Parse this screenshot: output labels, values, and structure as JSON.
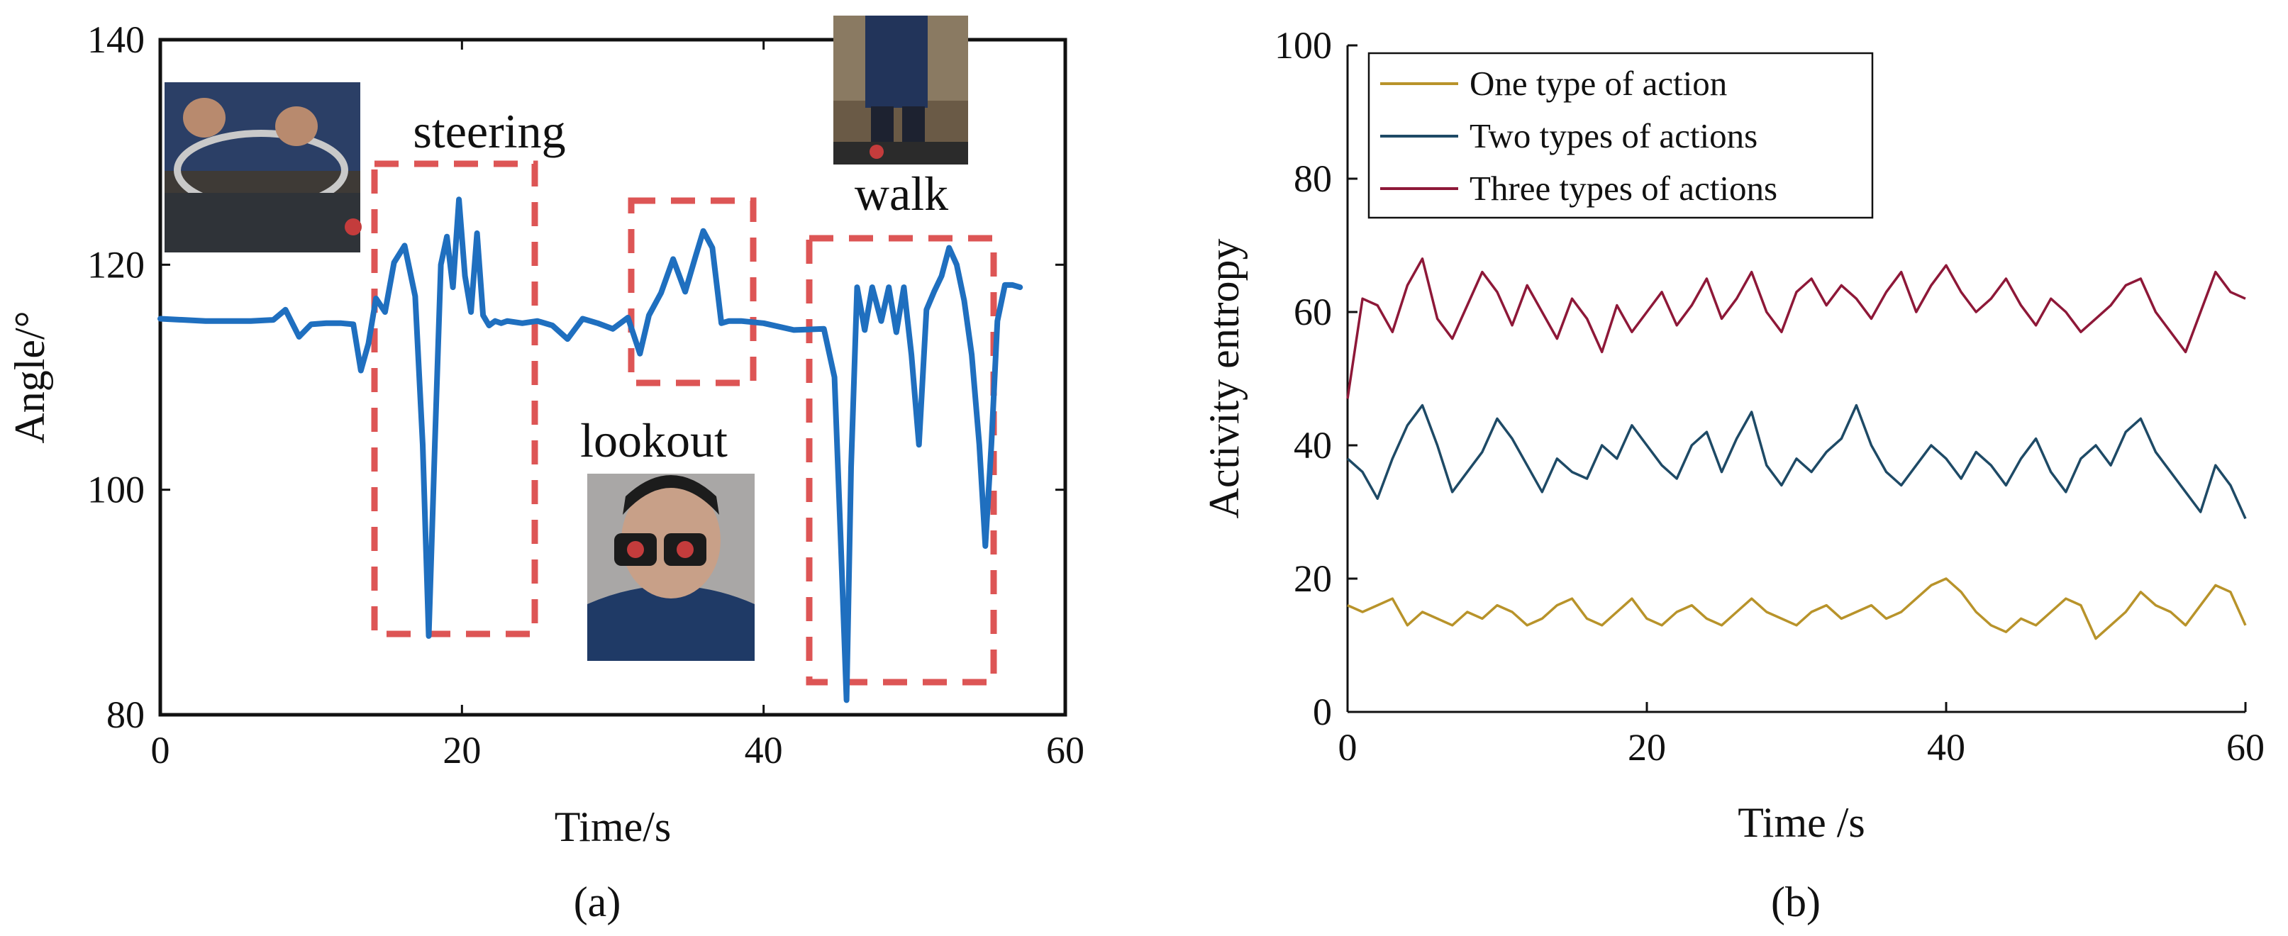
{
  "chart_data": [
    {
      "panel": "(a)",
      "type": "line",
      "xlabel": "Time/s",
      "ylabel": "Angle/°",
      "xlim": [
        0,
        60
      ],
      "ylim": [
        80,
        140
      ],
      "xticks": [
        0,
        20,
        40,
        60
      ],
      "yticks": [
        80,
        100,
        120,
        140
      ],
      "series": [
        {
          "name": "Angle",
          "color": "#1f6fbf",
          "x": [
            0,
            3,
            6,
            7.5,
            8.3,
            9.2,
            10,
            11,
            12,
            12.8,
            13.3,
            13.8,
            14.3,
            14.9,
            15.5,
            16.2,
            16.9,
            17.4,
            17.8,
            18.2,
            18.6,
            19.0,
            19.4,
            19.8,
            20.2,
            20.6,
            21.0,
            21.4,
            21.8,
            22.2,
            22.6,
            23.0,
            24,
            25,
            26,
            27,
            28,
            29,
            30,
            31,
            31.8,
            32.4,
            33.2,
            34.0,
            34.8,
            35.5,
            36.0,
            36.6,
            37.2,
            37.7,
            38.5,
            40,
            42,
            44,
            44.7,
            45.1,
            45.5,
            45.8,
            46.2,
            46.7,
            47.2,
            47.8,
            48.3,
            48.8,
            49.3,
            49.8,
            50.3,
            50.8,
            51.3,
            51.8,
            52.3,
            52.8,
            53.3,
            53.8,
            54.3,
            54.7,
            55.1,
            55.5,
            56.0,
            56.5,
            57.0
          ],
          "y": [
            115.2,
            115.0,
            115.0,
            115.1,
            116.0,
            113.6,
            114.7,
            114.8,
            114.8,
            114.7,
            110.6,
            113.0,
            117.0,
            115.8,
            120.2,
            121.7,
            117.2,
            104.0,
            87.0,
            104.0,
            120.0,
            122.5,
            118.0,
            125.8,
            119.0,
            115.8,
            122.8,
            115.5,
            114.6,
            115.0,
            114.8,
            115.0,
            114.8,
            115.0,
            114.6,
            113.4,
            115.2,
            114.8,
            114.3,
            115.3,
            112.1,
            115.5,
            117.5,
            120.5,
            117.6,
            120.8,
            123.0,
            121.5,
            114.8,
            115.0,
            115.0,
            114.8,
            114.2,
            114.3,
            110.0,
            96.0,
            81.3,
            102.0,
            118.0,
            114.2,
            118.0,
            115.0,
            118.0,
            114.0,
            118.0,
            112.0,
            104.0,
            116.0,
            117.6,
            119.0,
            121.5,
            120.0,
            116.8,
            112.0,
            104.0,
            95.0,
            104.0,
            115.0,
            118.2,
            118.2,
            118.0
          ]
        }
      ],
      "annotations": [
        "steering",
        "lookout",
        "walk"
      ],
      "caption": "(a)"
    },
    {
      "panel": "(b)",
      "type": "line",
      "xlabel": "Time /s",
      "ylabel": "Activity entropy",
      "xlim": [
        0,
        60
      ],
      "ylim": [
        0,
        100
      ],
      "xticks": [
        0,
        20,
        40,
        60
      ],
      "yticks": [
        0,
        20,
        40,
        60,
        80,
        100
      ],
      "legend_position": "top-left",
      "series": [
        {
          "name": "One type of action",
          "color": "#b8932a",
          "x": [
            0,
            1,
            2,
            3,
            4,
            5,
            6,
            7,
            8,
            9,
            10,
            11,
            12,
            13,
            14,
            15,
            16,
            17,
            18,
            19,
            20,
            21,
            22,
            23,
            24,
            25,
            26,
            27,
            28,
            29,
            30,
            31,
            32,
            33,
            34,
            35,
            36,
            37,
            38,
            39,
            40,
            41,
            42,
            43,
            44,
            45,
            46,
            47,
            48,
            49,
            50,
            51,
            52,
            53,
            54,
            55,
            56,
            57,
            58,
            59,
            60
          ],
          "y": [
            16,
            15,
            16,
            17,
            13,
            15,
            14,
            13,
            15,
            14,
            16,
            15,
            13,
            14,
            16,
            17,
            14,
            13,
            15,
            17,
            14,
            13,
            15,
            16,
            14,
            13,
            15,
            17,
            15,
            14,
            13,
            15,
            16,
            14,
            15,
            16,
            14,
            15,
            17,
            19,
            20,
            18,
            15,
            13,
            12,
            14,
            13,
            15,
            17,
            16,
            11,
            13,
            15,
            18,
            16,
            15,
            13,
            16,
            19,
            18,
            13
          ]
        },
        {
          "name": "Two types of actions",
          "color": "#1e4a66",
          "x": [
            0,
            1,
            2,
            3,
            4,
            5,
            6,
            7,
            8,
            9,
            10,
            11,
            12,
            13,
            14,
            15,
            16,
            17,
            18,
            19,
            20,
            21,
            22,
            23,
            24,
            25,
            26,
            27,
            28,
            29,
            30,
            31,
            32,
            33,
            34,
            35,
            36,
            37,
            38,
            39,
            40,
            41,
            42,
            43,
            44,
            45,
            46,
            47,
            48,
            49,
            50,
            51,
            52,
            53,
            54,
            55,
            56,
            57,
            58,
            59,
            60
          ],
          "y": [
            38,
            36,
            32,
            38,
            43,
            46,
            40,
            33,
            36,
            39,
            44,
            41,
            37,
            33,
            38,
            36,
            35,
            40,
            38,
            43,
            40,
            37,
            35,
            40,
            42,
            36,
            41,
            45,
            37,
            34,
            38,
            36,
            39,
            41,
            46,
            40,
            36,
            34,
            37,
            40,
            38,
            35,
            39,
            37,
            34,
            38,
            41,
            36,
            33,
            38,
            40,
            37,
            42,
            44,
            39,
            36,
            33,
            30,
            37,
            34,
            29
          ]
        },
        {
          "name": "Three types of actions",
          "color": "#8e1838",
          "x": [
            0,
            1,
            2,
            3,
            4,
            5,
            6,
            7,
            8,
            9,
            10,
            11,
            12,
            13,
            14,
            15,
            16,
            17,
            18,
            19,
            20,
            21,
            22,
            23,
            24,
            25,
            26,
            27,
            28,
            29,
            30,
            31,
            32,
            33,
            34,
            35,
            36,
            37,
            38,
            39,
            40,
            41,
            42,
            43,
            44,
            45,
            46,
            47,
            48,
            49,
            50,
            51,
            52,
            53,
            54,
            55,
            56,
            57,
            58,
            59,
            60
          ],
          "y": [
            47,
            62,
            61,
            57,
            64,
            68,
            59,
            56,
            61,
            66,
            63,
            58,
            64,
            60,
            56,
            62,
            59,
            54,
            61,
            57,
            60,
            63,
            58,
            61,
            65,
            59,
            62,
            66,
            60,
            57,
            63,
            65,
            61,
            64,
            62,
            59,
            63,
            66,
            60,
            64,
            67,
            63,
            60,
            62,
            65,
            61,
            58,
            62,
            60,
            57,
            59,
            61,
            64,
            65,
            60,
            57,
            54,
            60,
            66,
            63,
            62
          ]
        }
      ],
      "caption": "(b)"
    }
  ]
}
